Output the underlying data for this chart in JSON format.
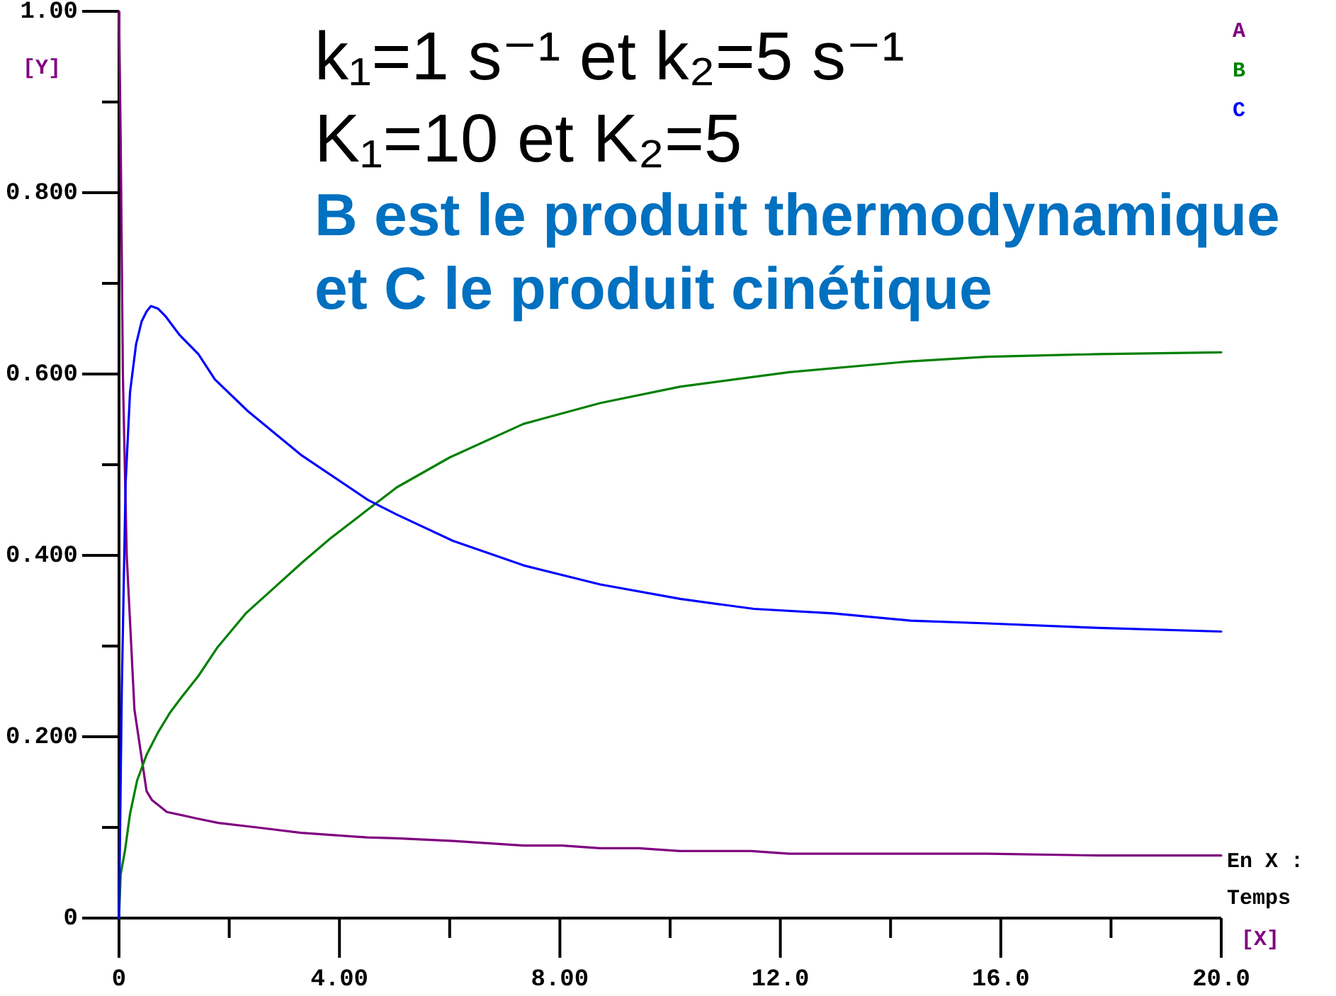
{
  "chart_data": {
    "type": "line",
    "title": "k₁=1 s⁻¹ et k₂=5 s⁻¹",
    "subtitle": "K₁=10 et K₂=5",
    "xlabel": "[X]",
    "ylabel": "[Y]",
    "annotations": [
      "B est le produit thermodynamique",
      "et C le produit cinétique",
      "En X :",
      "Temps"
    ],
    "xlim": [
      0,
      20
    ],
    "ylim": [
      0,
      1
    ],
    "xticks": [
      0,
      {
        "value": 2,
        "label": null
      },
      {
        "value": 4,
        "label": "4.00"
      },
      {
        "value": 6,
        "label": null
      },
      {
        "value": 8,
        "label": "8.00"
      },
      {
        "value": 10,
        "label": null
      },
      {
        "value": 12,
        "label": "12.0"
      },
      {
        "value": 14,
        "label": null
      },
      {
        "value": 16,
        "label": "16.0"
      },
      {
        "value": 18,
        "label": null
      },
      {
        "value": 20,
        "label": "20.0"
      }
    ],
    "yticks": [
      0,
      {
        "value": 0.1,
        "label": null
      },
      {
        "value": 0.2,
        "label": "0.200"
      },
      {
        "value": 0.3,
        "label": null
      },
      {
        "value": 0.4,
        "label": "0.400"
      },
      {
        "value": 0.5,
        "label": null
      },
      {
        "value": 0.6,
        "label": "0.600"
      },
      {
        "value": 0.7,
        "label": null
      },
      {
        "value": 0.8,
        "label": "0.800"
      },
      {
        "value": 0.9,
        "label": null
      },
      {
        "value": 1,
        "label": "1.00"
      }
    ],
    "legend": "top right",
    "series": [
      {
        "name": "A",
        "color": "#800080",
        "x": [
          0,
          0.03,
          0.07,
          0.14,
          0.28,
          0.5,
          0.6,
          0.87,
          1.4,
          1.8,
          2.5,
          3.3,
          4.5,
          5.04,
          6.06,
          7.34,
          8.04,
          8.73,
          9.43,
          10.18,
          11.47,
          12.16,
          15.75,
          17.78,
          20
        ],
        "values": [
          1.0,
          0.86,
          0.6,
          0.4,
          0.23,
          0.14,
          0.13,
          0.117,
          0.11,
          0.105,
          0.1,
          0.094,
          0.089,
          0.088,
          0.085,
          0.08,
          0.08,
          0.077,
          0.077,
          0.074,
          0.074,
          0.071,
          0.071,
          0.069,
          0.069
        ]
      },
      {
        "name": "B",
        "color": "#008000",
        "x": [
          0,
          0.03,
          0.11,
          0.2,
          0.33,
          0.5,
          0.71,
          0.93,
          1.14,
          1.44,
          1.78,
          2.3,
          2.81,
          3.32,
          3.84,
          4.44,
          5.04,
          6.0,
          7.34,
          8.73,
          10.18,
          12.16,
          14.36,
          15.75,
          17.78,
          20
        ],
        "values": [
          0,
          0.048,
          0.075,
          0.115,
          0.152,
          0.18,
          0.205,
          0.227,
          0.244,
          0.267,
          0.298,
          0.336,
          0.364,
          0.392,
          0.419,
          0.447,
          0.475,
          0.508,
          0.545,
          0.568,
          0.586,
          0.602,
          0.614,
          0.619,
          0.622,
          0.624
        ]
      },
      {
        "name": "C",
        "color": "#0000ff",
        "x": [
          0,
          0.05,
          0.12,
          0.2,
          0.31,
          0.41,
          0.5,
          0.58,
          0.71,
          0.84,
          1.1,
          1.44,
          1.74,
          2.34,
          3.32,
          4.52,
          5.04,
          6.06,
          7.34,
          8.73,
          10.18,
          11.52,
          12.96,
          14.36,
          15.75,
          17.78,
          20
        ],
        "values": [
          0,
          0.25,
          0.48,
          0.58,
          0.633,
          0.658,
          0.669,
          0.675,
          0.672,
          0.664,
          0.643,
          0.622,
          0.594,
          0.559,
          0.51,
          0.461,
          0.445,
          0.416,
          0.389,
          0.368,
          0.352,
          0.341,
          0.336,
          0.328,
          0.325,
          0.32,
          0.316
        ]
      }
    ]
  }
}
